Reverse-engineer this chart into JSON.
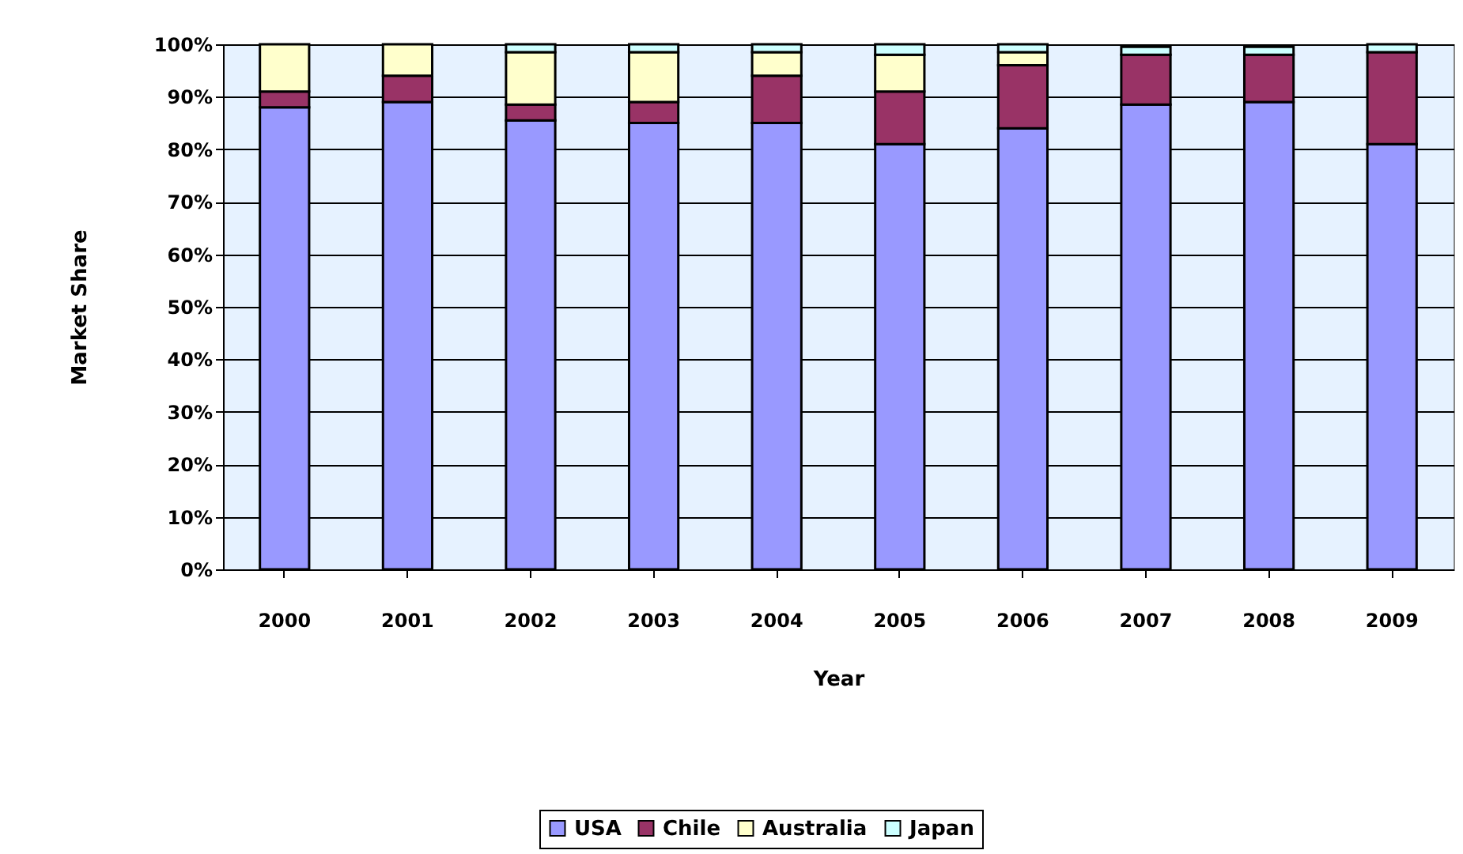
{
  "chart_data": {
    "type": "bar",
    "stacked": true,
    "xlabel": "Year",
    "ylabel": "Market Share",
    "categories": [
      "2000",
      "2001",
      "2002",
      "2003",
      "2004",
      "2005",
      "2006",
      "2007",
      "2008",
      "2009"
    ],
    "series": [
      {
        "name": "USA",
        "color": "#9999ff",
        "values": [
          88,
          89,
          85.5,
          85,
          85,
          81,
          84,
          88.5,
          89,
          81
        ]
      },
      {
        "name": "Chile",
        "color": "#993366",
        "values": [
          3,
          5,
          3,
          4,
          9,
          10,
          12,
          9.5,
          9,
          17.5
        ]
      },
      {
        "name": "Australia",
        "color": "#ffffcc",
        "values": [
          9,
          6,
          10,
          9.5,
          4.5,
          7,
          2.5,
          null,
          null,
          null
        ]
      },
      {
        "name": "Japan",
        "color": "#ccffff",
        "values": [
          null,
          null,
          1.5,
          1.5,
          1.5,
          2,
          1.5,
          1.5,
          1.5,
          1.5
        ]
      }
    ],
    "ylim": [
      0,
      100
    ],
    "yticks": [
      {
        "value": 0,
        "label": "0%"
      },
      {
        "value": 10,
        "label": "10%"
      },
      {
        "value": 20,
        "label": "20%"
      },
      {
        "value": 30,
        "label": "30%"
      },
      {
        "value": 40,
        "label": "40%"
      },
      {
        "value": 50,
        "label": "50%"
      },
      {
        "value": 60,
        "label": "60%"
      },
      {
        "value": 70,
        "label": "70%"
      },
      {
        "value": 80,
        "label": "80%"
      },
      {
        "value": 90,
        "label": "90%"
      },
      {
        "value": 100,
        "label": "100%"
      }
    ],
    "grid": "y",
    "legend": "bottom"
  }
}
